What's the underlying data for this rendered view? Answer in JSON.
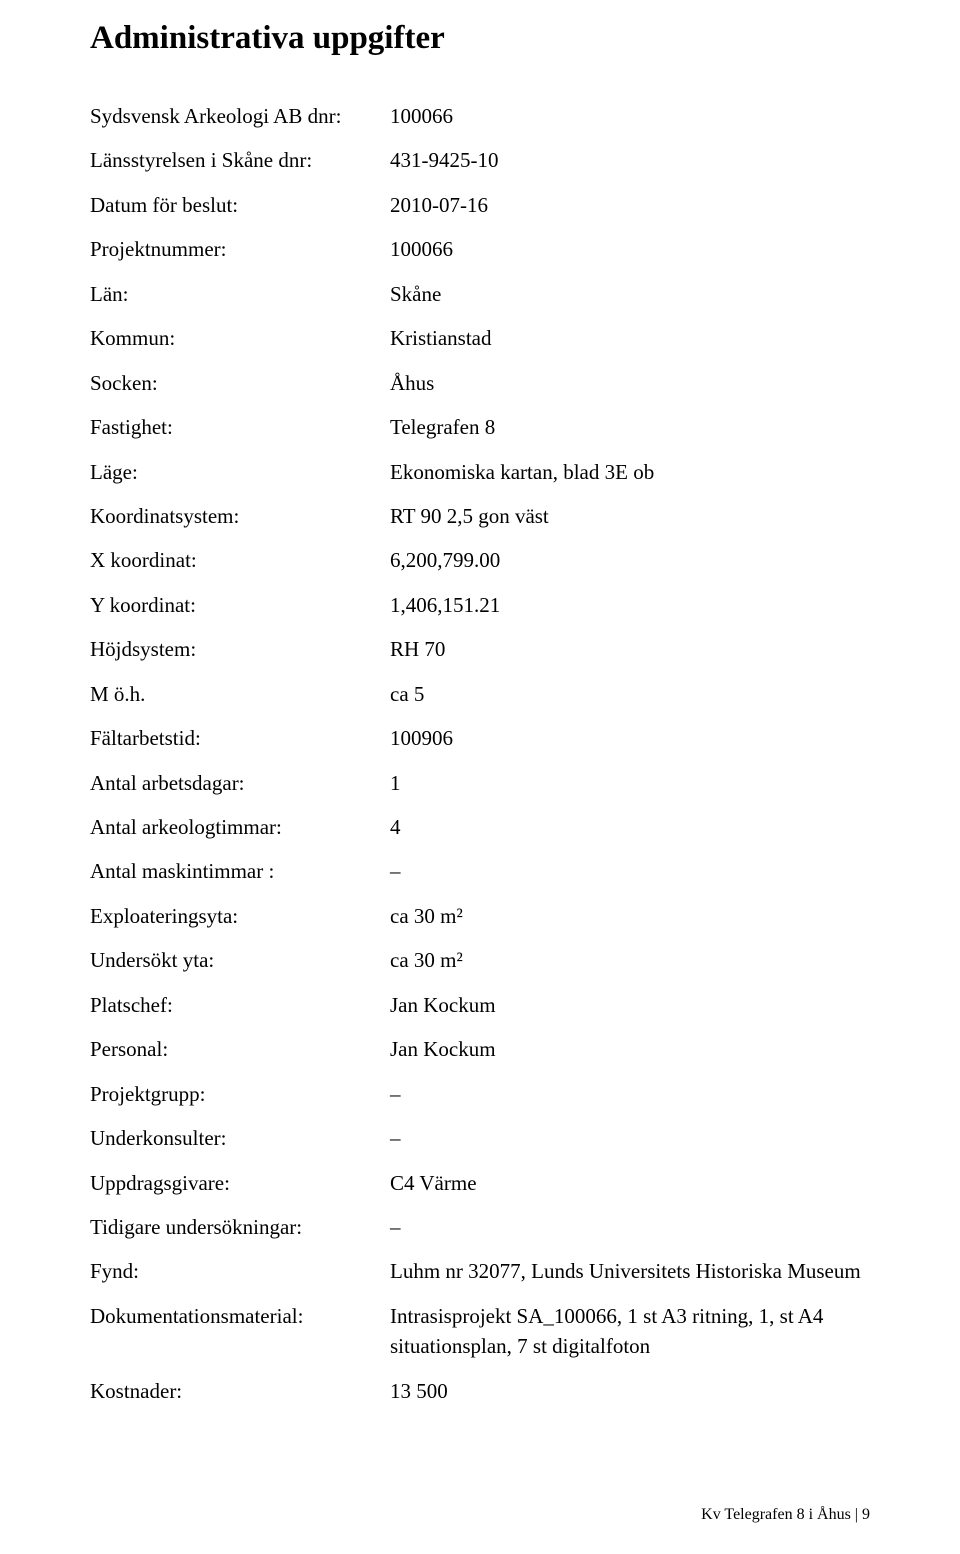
{
  "title": "Administrativa uppgifter",
  "rows": [
    {
      "label": "Sydsvensk Arkeologi AB dnr:",
      "value": "100066"
    },
    {
      "label": "Länsstyrelsen i Skåne dnr:",
      "value": "431-9425-10"
    },
    {
      "label": "Datum för beslut:",
      "value": "2010-07-16"
    },
    {
      "label": "Projektnummer:",
      "value": "100066"
    },
    {
      "label": "Län:",
      "value": "Skåne"
    },
    {
      "label": "Kommun:",
      "value": "Kristianstad"
    },
    {
      "label": "Socken:",
      "value": "Åhus"
    },
    {
      "label": "Fastighet:",
      "value": "Telegrafen 8"
    },
    {
      "label": "Läge:",
      "value": "Ekonomiska kartan, blad 3E ob"
    },
    {
      "label": "Koordinatsystem:",
      "value": "RT 90 2,5 gon väst"
    },
    {
      "label": "X koordinat:",
      "value": "6,200,799.00"
    },
    {
      "label": "Y koordinat:",
      "value": "1,406,151.21"
    },
    {
      "label": "Höjdsystem:",
      "value": "RH 70"
    },
    {
      "label": "M ö.h.",
      "value": "ca 5"
    },
    {
      "label": "Fältarbetstid:",
      "value": "100906"
    },
    {
      "label": "Antal arbetsdagar:",
      "value": "1"
    },
    {
      "label": "Antal arkeologtimmar:",
      "value": "4"
    },
    {
      "label": "Antal maskintimmar :",
      "value": "–"
    },
    {
      "label": "Exploateringsyta:",
      "value": "ca 30 m²"
    },
    {
      "label": "Undersökt yta:",
      "value": "ca 30 m²"
    },
    {
      "label": "Platschef:",
      "value": "Jan Kockum"
    },
    {
      "label": "Personal:",
      "value": "Jan Kockum"
    },
    {
      "label": "Projektgrupp:",
      "value": "–"
    },
    {
      "label": "Underkonsulter:",
      "value": "–"
    },
    {
      "label": "Uppdragsgivare:",
      "value": "C4 Värme"
    },
    {
      "label": "Tidigare undersökningar:",
      "value": "–"
    },
    {
      "label": "Fynd:",
      "value": "Luhm nr 32077, Lunds Universitets Historiska Museum"
    },
    {
      "label": "Dokumentationsmaterial:",
      "value": "Intrasisprojekt SA_100066, 1 st A3 ritning, 1, st A4 situationsplan, 7 st digitalfoton"
    },
    {
      "label": "Kostnader:",
      "value": "13 500"
    }
  ],
  "footer": "Kv Telegrafen 8 i Åhus | 9"
}
